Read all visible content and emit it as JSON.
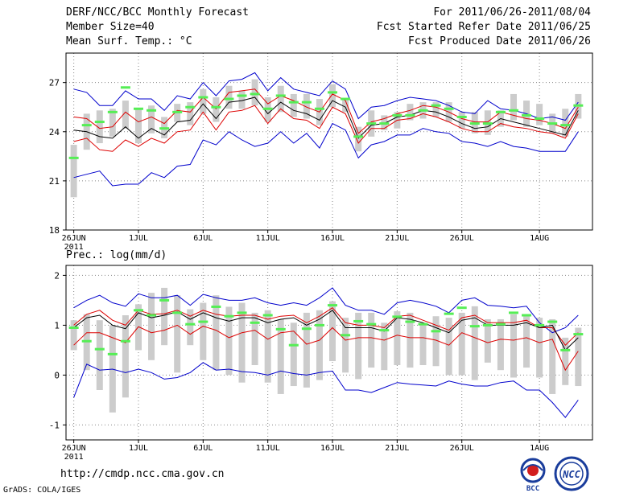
{
  "header": {
    "title": "DERF/NCC/BCC Monthly Forecast",
    "member_size": "Member Size=40",
    "variable": "Mean Surf. Temp.: °C",
    "for_range": "For 2011/06/26-2011/08/04",
    "started": "Fcst Started Refer Date 2011/06/25",
    "produced": "Fcst Produced Date 2011/06/26"
  },
  "prec_label": "Prec.: log(mm/d)",
  "footer": {
    "url": "http://cmdp.ncc.cma.gov.cn",
    "grads": "GrADS: COLA/IGES",
    "logo_bcc": "BCC",
    "logo_ncc": "NCC"
  },
  "colors": {
    "envelope": "#0000cc",
    "spread": "#dd0000",
    "mean": "#000000",
    "obs": "#55ee55",
    "box": "#cccccc",
    "grid": "#888888"
  },
  "chart_data": [
    {
      "type": "box_ensemble",
      "title": "Mean Surf. Temp.",
      "ylabel": "°C",
      "ylim": [
        18,
        28.8
      ],
      "yticks": [
        18,
        21,
        24,
        27
      ],
      "x_day_range": [
        -0.6,
        40.1
      ],
      "x_ticks": [
        {
          "day": 0,
          "label": "26JUN",
          "sub": "2011"
        },
        {
          "day": 5,
          "label": "1JUL"
        },
        {
          "day": 10,
          "label": "6JUL"
        },
        {
          "day": 15,
          "label": "11JUL"
        },
        {
          "day": 20,
          "label": "16JUL"
        },
        {
          "day": 25,
          "label": "21JUL"
        },
        {
          "day": 30,
          "label": "26JUL"
        },
        {
          "day": 36,
          "label": "1AUG"
        }
      ],
      "days": [
        0,
        1,
        2,
        3,
        4,
        5,
        6,
        7,
        8,
        9,
        10,
        11,
        12,
        13,
        14,
        15,
        16,
        17,
        18,
        19,
        20,
        21,
        22,
        23,
        24,
        25,
        26,
        27,
        28,
        29,
        30,
        31,
        32,
        33,
        34,
        35,
        36,
        37,
        38,
        39
      ],
      "max": [
        26.6,
        26.4,
        25.6,
        25.6,
        26.5,
        26.0,
        26.0,
        25.3,
        26.2,
        26.0,
        27.0,
        26.2,
        27.1,
        27.2,
        27.6,
        26.5,
        27.3,
        26.6,
        26.4,
        26.2,
        27.1,
        26.6,
        24.8,
        25.5,
        25.6,
        25.9,
        26.1,
        26.0,
        25.9,
        25.6,
        25.2,
        25.1,
        25.9,
        25.4,
        25.3,
        25.1,
        24.8,
        24.9,
        24.7,
        25.8
      ],
      "upper": [
        24.9,
        24.8,
        24.2,
        24.3,
        25.2,
        24.6,
        24.9,
        24.5,
        25.3,
        25.2,
        26.1,
        25.4,
        26.4,
        26.5,
        26.6,
        25.7,
        26.2,
        25.9,
        25.5,
        25.2,
        26.3,
        25.9,
        23.9,
        24.6,
        24.8,
        25.1,
        25.3,
        25.6,
        25.5,
        25.2,
        24.8,
        24.6,
        24.6,
        25.2,
        25.0,
        24.8,
        24.7,
        24.5,
        24.2,
        25.5
      ],
      "mean": [
        24.1,
        24.0,
        23.7,
        23.6,
        24.3,
        23.6,
        24.2,
        23.8,
        24.6,
        24.7,
        25.7,
        24.8,
        25.8,
        25.9,
        26.1,
        25.1,
        25.8,
        25.3,
        25.1,
        24.7,
        25.9,
        25.5,
        23.6,
        24.4,
        24.5,
        24.9,
        25.0,
        25.3,
        25.2,
        24.9,
        24.5,
        24.2,
        24.3,
        24.8,
        24.6,
        24.4,
        24.2,
        24.0,
        23.8,
        25.3
      ],
      "lower": [
        23.4,
        23.6,
        22.9,
        22.8,
        23.5,
        23.1,
        23.6,
        23.3,
        24.0,
        24.1,
        25.2,
        24.1,
        25.2,
        25.3,
        25.6,
        24.5,
        25.4,
        24.8,
        24.7,
        24.2,
        25.5,
        25.1,
        23.3,
        24.2,
        24.2,
        24.7,
        24.8,
        25.1,
        24.9,
        24.6,
        24.2,
        24.0,
        24.0,
        24.5,
        24.3,
        24.2,
        24.0,
        23.9,
        23.6,
        25.1
      ],
      "min": [
        21.2,
        21.4,
        21.6,
        20.7,
        20.8,
        20.8,
        21.5,
        21.2,
        21.9,
        22.0,
        23.5,
        23.2,
        24.0,
        23.5,
        23.1,
        23.3,
        24.0,
        23.3,
        23.9,
        23.0,
        24.5,
        24.1,
        22.4,
        23.2,
        23.4,
        23.8,
        23.8,
        24.2,
        24.0,
        23.9,
        23.4,
        23.3,
        23.1,
        23.4,
        23.1,
        23.0,
        22.8,
        22.8,
        22.8,
        24.0
      ],
      "box_high": [
        23.2,
        25.1,
        25.3,
        25.4,
        25.9,
        25.4,
        25.6,
        24.9,
        25.7,
        25.8,
        26.6,
        26.1,
        26.8,
        26.5,
        27.2,
        26.1,
        26.8,
        26.3,
        26.3,
        26.0,
        26.9,
        26.0,
        24.3,
        25.3,
        25.0,
        25.2,
        25.7,
        25.8,
        25.8,
        25.8,
        25.2,
        25.2,
        25.3,
        25.3,
        26.3,
        25.9,
        25.7,
        25.1,
        25.4,
        26.3
      ],
      "box_low": [
        20.0,
        22.9,
        23.3,
        23.7,
        24.2,
        23.3,
        23.9,
        23.6,
        24.6,
        24.4,
        25.1,
        24.6,
        25.4,
        25.4,
        25.6,
        24.6,
        25.2,
        24.9,
        24.8,
        24.4,
        25.5,
        25.2,
        22.8,
        23.7,
        24.1,
        24.2,
        24.7,
        24.8,
        24.9,
        24.6,
        24.2,
        23.9,
        23.8,
        24.3,
        24.7,
        24.3,
        24.4,
        23.9,
        23.7,
        24.8
      ],
      "obs": [
        22.4,
        24.4,
        24.6,
        25.2,
        26.7,
        25.4,
        25.3,
        24.2,
        25.2,
        25.5,
        26.1,
        25.5,
        26.0,
        26.2,
        26.3,
        25.4,
        26.2,
        25.8,
        25.8,
        25.4,
        26.4,
        26.0,
        23.7,
        24.5,
        24.5,
        25.0,
        25.0,
        25.3,
        25.6,
        25.4,
        24.9,
        24.5,
        24.5,
        25.2,
        25.3,
        25.0,
        24.8,
        24.5,
        24.4,
        25.6
      ]
    },
    {
      "type": "box_ensemble",
      "title": "Prec.",
      "ylabel": "log(mm/d)",
      "ylim": [
        -1.3,
        2.2
      ],
      "yticks": [
        -1,
        0,
        1,
        2
      ],
      "x_day_range": [
        -0.6,
        40.1
      ],
      "x_ticks": [
        {
          "day": 0,
          "label": "26JUN",
          "sub": "2011"
        },
        {
          "day": 5,
          "label": "1JUL"
        },
        {
          "day": 10,
          "label": "6JUL"
        },
        {
          "day": 15,
          "label": "11JUL"
        },
        {
          "day": 20,
          "label": "16JUL"
        },
        {
          "day": 25,
          "label": "21JUL"
        },
        {
          "day": 30,
          "label": "26JUL"
        },
        {
          "day": 36,
          "label": "1AUG"
        }
      ],
      "days": [
        0,
        1,
        2,
        3,
        4,
        5,
        6,
        7,
        8,
        9,
        10,
        11,
        12,
        13,
        14,
        15,
        16,
        17,
        18,
        19,
        20,
        21,
        22,
        23,
        24,
        25,
        26,
        27,
        28,
        29,
        30,
        31,
        32,
        33,
        34,
        35,
        36,
        37,
        38,
        39
      ],
      "max": [
        1.35,
        1.5,
        1.6,
        1.45,
        1.38,
        1.63,
        1.55,
        1.55,
        1.6,
        1.4,
        1.62,
        1.55,
        1.5,
        1.5,
        1.55,
        1.45,
        1.4,
        1.45,
        1.4,
        1.55,
        1.75,
        1.4,
        1.3,
        1.3,
        1.22,
        1.45,
        1.5,
        1.45,
        1.38,
        1.25,
        1.5,
        1.55,
        1.4,
        1.38,
        1.35,
        1.38,
        1.05,
        0.85,
        0.95,
        1.2
      ],
      "upper": [
        1.0,
        1.22,
        1.3,
        1.1,
        1.0,
        1.3,
        1.22,
        1.23,
        1.3,
        1.18,
        1.3,
        1.22,
        1.18,
        1.2,
        1.2,
        1.12,
        1.18,
        1.2,
        1.05,
        1.18,
        1.35,
        1.05,
        1.0,
        1.0,
        0.95,
        1.18,
        1.2,
        1.1,
        1.0,
        0.9,
        1.15,
        1.2,
        1.05,
        1.05,
        1.05,
        1.1,
        0.95,
        0.95,
        0.6,
        0.85
      ],
      "mean": [
        0.95,
        1.15,
        1.2,
        1.0,
        0.93,
        1.25,
        1.15,
        1.2,
        1.27,
        1.12,
        1.25,
        1.15,
        1.08,
        1.15,
        1.15,
        1.05,
        1.12,
        1.15,
        1.0,
        1.12,
        1.3,
        0.95,
        0.95,
        0.95,
        0.88,
        1.15,
        1.12,
        1.05,
        0.95,
        0.85,
        1.1,
        1.15,
        1.0,
        1.0,
        1.0,
        1.05,
        0.95,
        1.0,
        0.5,
        0.75
      ],
      "lower": [
        0.6,
        0.85,
        0.85,
        0.75,
        0.65,
        0.97,
        0.85,
        0.9,
        1.0,
        0.82,
        0.98,
        0.9,
        0.75,
        0.85,
        0.9,
        0.72,
        0.85,
        0.88,
        0.62,
        0.7,
        0.95,
        0.7,
        0.75,
        0.75,
        0.7,
        0.8,
        0.75,
        0.75,
        0.7,
        0.6,
        0.85,
        0.75,
        0.65,
        0.72,
        0.7,
        0.75,
        0.65,
        0.72,
        0.1,
        0.48
      ],
      "min": [
        -0.45,
        0.22,
        0.1,
        0.12,
        0.05,
        0.12,
        0.05,
        -0.08,
        -0.05,
        0.05,
        0.25,
        0.1,
        0.12,
        0.07,
        0.05,
        0.0,
        0.08,
        0.03,
        0.0,
        0.05,
        0.08,
        -0.3,
        -0.3,
        -0.35,
        -0.25,
        -0.15,
        -0.18,
        -0.2,
        -0.22,
        -0.12,
        -0.18,
        -0.22,
        -0.22,
        -0.15,
        -0.12,
        -0.3,
        -0.3,
        -0.55,
        -0.85,
        -0.5
      ],
      "box_high": [
        1.1,
        1.22,
        1.1,
        1.0,
        1.2,
        1.42,
        1.65,
        1.75,
        1.6,
        1.32,
        1.45,
        1.6,
        1.37,
        1.45,
        1.25,
        1.3,
        1.12,
        1.05,
        1.25,
        1.3,
        1.48,
        1.15,
        1.25,
        1.25,
        1.05,
        1.28,
        1.25,
        1.05,
        1.18,
        1.15,
        1.25,
        1.38,
        1.12,
        1.12,
        1.22,
        1.22,
        1.15,
        1.12,
        0.75,
        0.95
      ],
      "box_low": [
        0.5,
        0.1,
        -0.3,
        -0.75,
        -0.45,
        0.5,
        0.3,
        0.6,
        0.05,
        0.6,
        0.3,
        0.1,
        0.0,
        -0.15,
        0.2,
        -0.15,
        -0.38,
        -0.22,
        -0.25,
        -0.1,
        0.28,
        0.05,
        -0.08,
        0.15,
        0.1,
        0.2,
        0.15,
        0.2,
        0.18,
        0.0,
        0.0,
        -0.1,
        0.25,
        0.1,
        -0.05,
        0.15,
        -0.05,
        -0.38,
        -0.2,
        -0.22
      ],
      "obs": [
        0.95,
        0.68,
        0.52,
        0.42,
        0.68,
        1.3,
        1.2,
        1.5,
        1.25,
        1.02,
        1.07,
        1.37,
        1.18,
        1.25,
        1.05,
        1.2,
        0.92,
        0.6,
        0.93,
        1.0,
        1.4,
        0.8,
        1.08,
        1.02,
        0.9,
        1.17,
        1.07,
        1.02,
        0.88,
        1.23,
        1.35,
        0.98,
        1.0,
        1.02,
        1.25,
        1.2,
        1.0,
        1.07,
        0.5,
        0.82
      ]
    }
  ]
}
